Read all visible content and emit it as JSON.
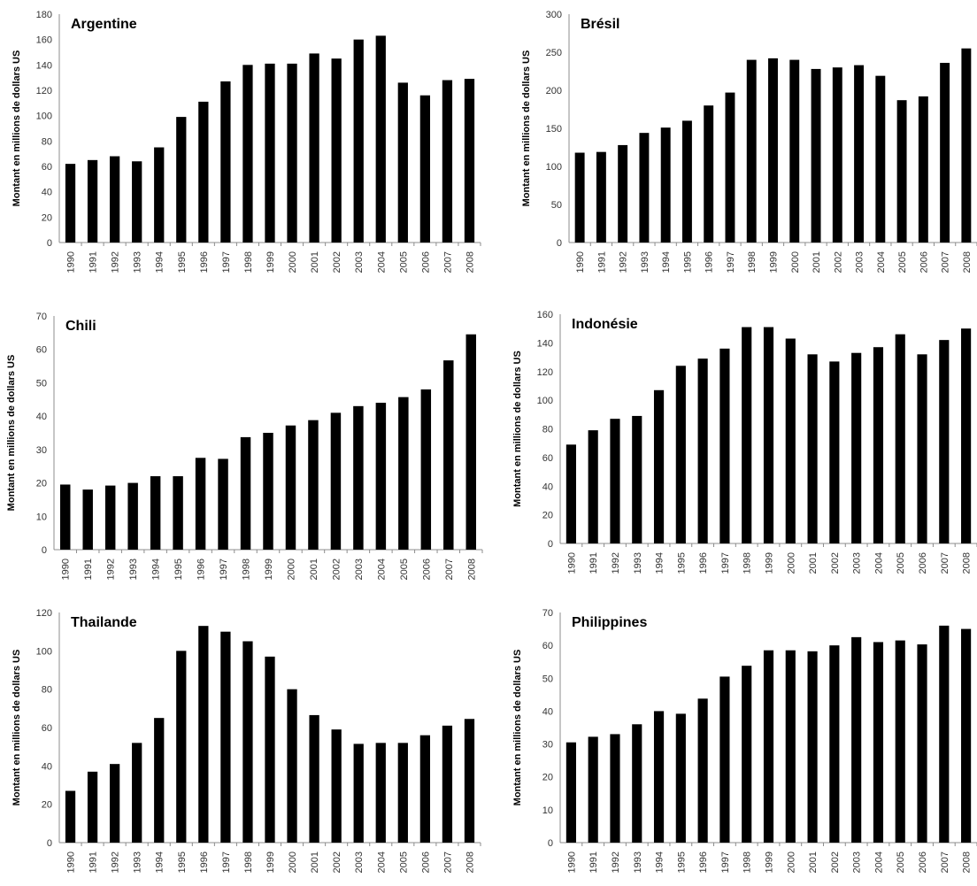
{
  "chart_data": [
    {
      "type": "bar",
      "title": "Argentine",
      "ylabel": "Montant en millions de dollars US",
      "xlabel": "",
      "ylim": [
        0,
        180
      ],
      "yticks": [
        0,
        20,
        40,
        60,
        80,
        100,
        120,
        140,
        160,
        180
      ],
      "grid": false,
      "bar_color": "#000000",
      "categories": [
        "1990",
        "1991",
        "1992",
        "1993",
        "1994",
        "1995",
        "1996",
        "1997",
        "1998",
        "1999",
        "2000",
        "2001",
        "2002",
        "2003",
        "2004",
        "2005",
        "2006",
        "2007",
        "2008"
      ],
      "values": [
        62,
        65,
        68,
        64,
        75,
        99,
        111,
        127,
        140,
        141,
        141,
        149,
        145,
        160,
        163,
        126,
        116,
        128,
        129
      ]
    },
    {
      "type": "bar",
      "title": "Brésil",
      "ylabel": "Montant en millions de dollars US",
      "xlabel": "",
      "ylim": [
        0,
        300
      ],
      "yticks": [
        0,
        50,
        100,
        150,
        200,
        250,
        300
      ],
      "grid": false,
      "bar_color": "#000000",
      "categories": [
        "1990",
        "1991",
        "1992",
        "1993",
        "1994",
        "1995",
        "1996",
        "1997",
        "1998",
        "1999",
        "2000",
        "2001",
        "2002",
        "2003",
        "2004",
        "2005",
        "2006",
        "2007",
        "2008"
      ],
      "values": [
        118,
        119,
        128,
        144,
        151,
        160,
        180,
        197,
        240,
        242,
        240,
        228,
        230,
        233,
        219,
        187,
        192,
        236,
        255
      ]
    },
    {
      "type": "bar",
      "title": "Chili",
      "ylabel": "Montant en millions de dollars US",
      "xlabel": "",
      "ylim": [
        0,
        70
      ],
      "yticks": [
        0,
        10,
        20,
        30,
        40,
        50,
        60,
        70
      ],
      "grid": false,
      "bar_color": "#000000",
      "categories": [
        "1990",
        "1991",
        "1992",
        "1993",
        "1994",
        "1995",
        "1996",
        "1997",
        "1998",
        "1999",
        "2000",
        "2001",
        "2002",
        "2003",
        "2004",
        "2005",
        "2006",
        "2007",
        "2008"
      ],
      "values": [
        19.5,
        18,
        19.2,
        20,
        22,
        22,
        27.5,
        27.2,
        33.7,
        35,
        37.2,
        38.8,
        41,
        43,
        44,
        45.7,
        48,
        56.7,
        64.5
      ]
    },
    {
      "type": "bar",
      "title": "Indonésie",
      "ylabel": "Montant en millions de dollars US",
      "xlabel": "",
      "ylim": [
        0,
        160
      ],
      "yticks": [
        0,
        20,
        40,
        60,
        80,
        100,
        120,
        140,
        160
      ],
      "grid": false,
      "bar_color": "#000000",
      "categories": [
        "1990",
        "1991",
        "1992",
        "1993",
        "1994",
        "1995",
        "1996",
        "1997",
        "1998",
        "1999",
        "2000",
        "2001",
        "2002",
        "2003",
        "2004",
        "2005",
        "2006",
        "2007",
        "2008"
      ],
      "values": [
        69,
        79,
        87,
        89,
        107,
        124,
        129,
        136,
        151,
        151,
        143,
        132,
        127,
        133,
        137,
        146,
        132,
        142,
        150
      ]
    },
    {
      "type": "bar",
      "title": "Thailande",
      "ylabel": "Montant en millions de dollars US",
      "xlabel": "",
      "ylim": [
        0,
        120
      ],
      "yticks": [
        0,
        20,
        40,
        60,
        80,
        100,
        120
      ],
      "grid": false,
      "bar_color": "#000000",
      "categories": [
        "1990",
        "1991",
        "1992",
        "1993",
        "1994",
        "1995",
        "1996",
        "1997",
        "1998",
        "1999",
        "2000",
        "2001",
        "2002",
        "2003",
        "2004",
        "2005",
        "2006",
        "2007",
        "2008"
      ],
      "values": [
        27,
        37,
        41,
        52,
        65,
        100,
        113,
        110,
        105,
        97,
        80,
        66.5,
        59,
        51.5,
        52,
        52,
        56,
        61,
        64.5
      ]
    },
    {
      "type": "bar",
      "title": "Philippines",
      "ylabel": "Montant en millions de dollars US",
      "xlabel": "",
      "ylim": [
        0,
        70
      ],
      "yticks": [
        0,
        10,
        20,
        30,
        40,
        50,
        60,
        70
      ],
      "grid": false,
      "bar_color": "#000000",
      "categories": [
        "1990",
        "1991",
        "1992",
        "1993",
        "1994",
        "1995",
        "1996",
        "1997",
        "1998",
        "1999",
        "2000",
        "2001",
        "2002",
        "2003",
        "2004",
        "2005",
        "2006",
        "2007",
        "2008"
      ],
      "values": [
        30.5,
        32.2,
        33,
        36,
        40,
        39.2,
        43.8,
        50.5,
        53.8,
        58.5,
        58.5,
        58.2,
        60,
        62.5,
        61,
        61.5,
        60.3,
        66,
        65
      ]
    }
  ]
}
